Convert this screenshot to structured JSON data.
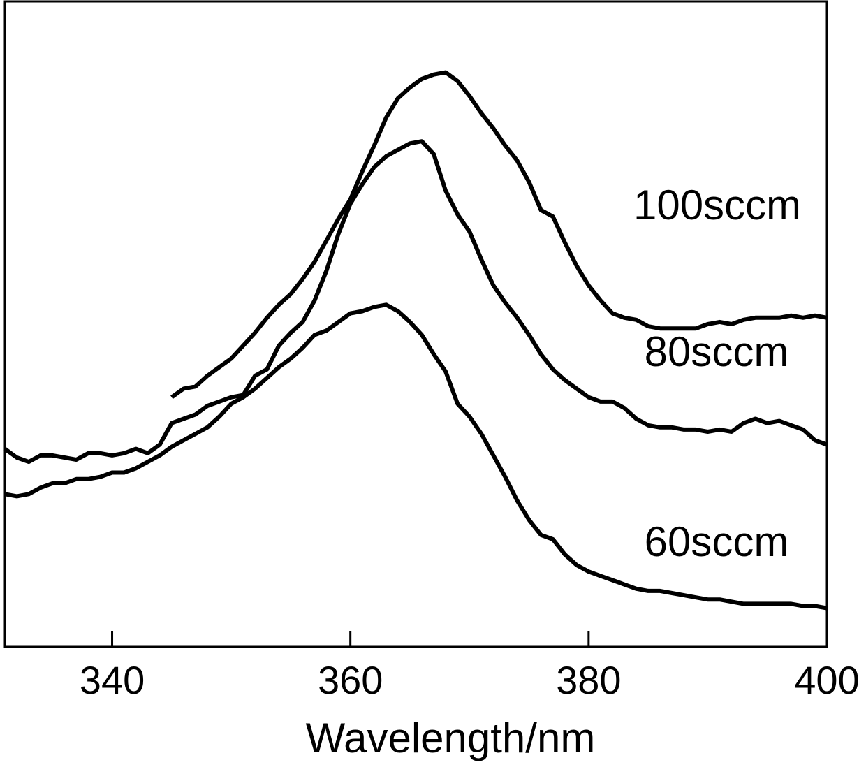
{
  "chart_data": {
    "type": "line",
    "xlabel": "Wavelength/nm",
    "ylabel": "",
    "xlim": [
      331,
      400
    ],
    "ylim": [
      0,
      30
    ],
    "x_ticks": [
      340,
      360,
      380,
      400
    ],
    "grid": false,
    "legend": "inline labels at right end of each curve",
    "series": [
      {
        "name": "100sccm",
        "points": [
          [
            345,
            11.6
          ],
          [
            346,
            12.0
          ],
          [
            347,
            12.1
          ],
          [
            348,
            12.6
          ],
          [
            349,
            13.0
          ],
          [
            350,
            13.4
          ],
          [
            351,
            14.0
          ],
          [
            352,
            14.6
          ],
          [
            353,
            15.3
          ],
          [
            354,
            15.9
          ],
          [
            355,
            16.4
          ],
          [
            356,
            17.1
          ],
          [
            357,
            17.9
          ],
          [
            358,
            18.9
          ],
          [
            359,
            19.9
          ],
          [
            360,
            20.8
          ],
          [
            361,
            22.1
          ],
          [
            362,
            23.3
          ],
          [
            363,
            24.6
          ],
          [
            364,
            25.5
          ],
          [
            365,
            26.0
          ],
          [
            366,
            26.4
          ],
          [
            367,
            26.6
          ],
          [
            368,
            26.7
          ],
          [
            369,
            26.3
          ],
          [
            370,
            25.6
          ],
          [
            371,
            24.8
          ],
          [
            372,
            24.1
          ],
          [
            373,
            23.3
          ],
          [
            374,
            22.6
          ],
          [
            375,
            21.6
          ],
          [
            376,
            20.3
          ],
          [
            377,
            20.0
          ],
          [
            378,
            18.8
          ],
          [
            379,
            17.7
          ],
          [
            380,
            16.8
          ],
          [
            381,
            16.1
          ],
          [
            382,
            15.5
          ],
          [
            383,
            15.3
          ],
          [
            384,
            15.2
          ],
          [
            385,
            14.9
          ],
          [
            386,
            14.8
          ],
          [
            387,
            14.8
          ],
          [
            388,
            14.8
          ],
          [
            389,
            14.8
          ],
          [
            390,
            15.0
          ],
          [
            391,
            15.1
          ],
          [
            392,
            15.0
          ],
          [
            393,
            15.2
          ],
          [
            394,
            15.3
          ],
          [
            395,
            15.3
          ],
          [
            396,
            15.3
          ],
          [
            397,
            15.4
          ],
          [
            398,
            15.3
          ],
          [
            399,
            15.4
          ],
          [
            400,
            15.3
          ]
        ]
      },
      {
        "name": "80sccm",
        "points": [
          [
            331,
            9.2
          ],
          [
            332,
            8.8
          ],
          [
            333,
            8.6
          ],
          [
            334,
            8.9
          ],
          [
            335,
            8.9
          ],
          [
            336,
            8.8
          ],
          [
            337,
            8.7
          ],
          [
            338,
            9.0
          ],
          [
            339,
            9.0
          ],
          [
            340,
            8.9
          ],
          [
            341,
            9.0
          ],
          [
            342,
            9.2
          ],
          [
            343,
            9.0
          ],
          [
            344,
            9.4
          ],
          [
            345,
            10.4
          ],
          [
            346,
            10.6
          ],
          [
            347,
            10.8
          ],
          [
            348,
            11.2
          ],
          [
            349,
            11.4
          ],
          [
            350,
            11.6
          ],
          [
            351,
            11.7
          ],
          [
            352,
            12.6
          ],
          [
            353,
            12.9
          ],
          [
            354,
            14.0
          ],
          [
            355,
            14.6
          ],
          [
            356,
            15.1
          ],
          [
            357,
            16.1
          ],
          [
            358,
            17.5
          ],
          [
            359,
            19.2
          ],
          [
            360,
            20.6
          ],
          [
            361,
            21.5
          ],
          [
            362,
            22.3
          ],
          [
            363,
            22.8
          ],
          [
            364,
            23.1
          ],
          [
            365,
            23.4
          ],
          [
            366,
            23.5
          ],
          [
            367,
            22.9
          ],
          [
            368,
            21.2
          ],
          [
            369,
            20.1
          ],
          [
            370,
            19.3
          ],
          [
            371,
            18.0
          ],
          [
            372,
            16.8
          ],
          [
            373,
            16.0
          ],
          [
            374,
            15.3
          ],
          [
            375,
            14.5
          ],
          [
            376,
            13.6
          ],
          [
            377,
            12.9
          ],
          [
            378,
            12.4
          ],
          [
            379,
            12.0
          ],
          [
            380,
            11.6
          ],
          [
            381,
            11.4
          ],
          [
            382,
            11.4
          ],
          [
            383,
            11.1
          ],
          [
            384,
            10.6
          ],
          [
            385,
            10.3
          ],
          [
            386,
            10.2
          ],
          [
            387,
            10.2
          ],
          [
            388,
            10.1
          ],
          [
            389,
            10.1
          ],
          [
            390,
            10.0
          ],
          [
            391,
            10.1
          ],
          [
            392,
            10.0
          ],
          [
            393,
            10.4
          ],
          [
            394,
            10.6
          ],
          [
            395,
            10.4
          ],
          [
            396,
            10.5
          ],
          [
            397,
            10.3
          ],
          [
            398,
            10.1
          ],
          [
            399,
            9.6
          ],
          [
            400,
            9.4
          ]
        ]
      },
      {
        "name": "60sccm",
        "points": [
          [
            331,
            7.1
          ],
          [
            332,
            7.0
          ],
          [
            333,
            7.1
          ],
          [
            334,
            7.4
          ],
          [
            335,
            7.6
          ],
          [
            336,
            7.6
          ],
          [
            337,
            7.8
          ],
          [
            338,
            7.8
          ],
          [
            339,
            7.9
          ],
          [
            340,
            8.1
          ],
          [
            341,
            8.1
          ],
          [
            342,
            8.3
          ],
          [
            343,
            8.6
          ],
          [
            344,
            8.9
          ],
          [
            345,
            9.3
          ],
          [
            346,
            9.6
          ],
          [
            347,
            9.9
          ],
          [
            348,
            10.2
          ],
          [
            349,
            10.7
          ],
          [
            350,
            11.3
          ],
          [
            351,
            11.6
          ],
          [
            352,
            12.0
          ],
          [
            353,
            12.5
          ],
          [
            354,
            13.0
          ],
          [
            355,
            13.4
          ],
          [
            356,
            13.9
          ],
          [
            357,
            14.5
          ],
          [
            358,
            14.7
          ],
          [
            359,
            15.1
          ],
          [
            360,
            15.5
          ],
          [
            361,
            15.6
          ],
          [
            362,
            15.8
          ],
          [
            363,
            15.9
          ],
          [
            364,
            15.6
          ],
          [
            365,
            15.1
          ],
          [
            366,
            14.5
          ],
          [
            367,
            13.6
          ],
          [
            368,
            12.8
          ],
          [
            369,
            11.3
          ],
          [
            370,
            10.7
          ],
          [
            371,
            9.9
          ],
          [
            372,
            8.9
          ],
          [
            373,
            7.9
          ],
          [
            374,
            6.8
          ],
          [
            375,
            5.9
          ],
          [
            376,
            5.2
          ],
          [
            377,
            5.0
          ],
          [
            378,
            4.3
          ],
          [
            379,
            3.8
          ],
          [
            380,
            3.5
          ],
          [
            381,
            3.3
          ],
          [
            382,
            3.1
          ],
          [
            383,
            2.9
          ],
          [
            384,
            2.7
          ],
          [
            385,
            2.6
          ],
          [
            386,
            2.6
          ],
          [
            387,
            2.5
          ],
          [
            388,
            2.4
          ],
          [
            389,
            2.3
          ],
          [
            390,
            2.2
          ],
          [
            391,
            2.2
          ],
          [
            392,
            2.1
          ],
          [
            393,
            2.0
          ],
          [
            394,
            2.0
          ],
          [
            395,
            2.0
          ],
          [
            396,
            2.0
          ],
          [
            397,
            2.0
          ],
          [
            398,
            1.9
          ],
          [
            399,
            1.9
          ],
          [
            400,
            1.8
          ]
        ]
      }
    ]
  },
  "colors": {
    "line": "#000000",
    "axis": "#000000",
    "background": "#ffffff"
  }
}
